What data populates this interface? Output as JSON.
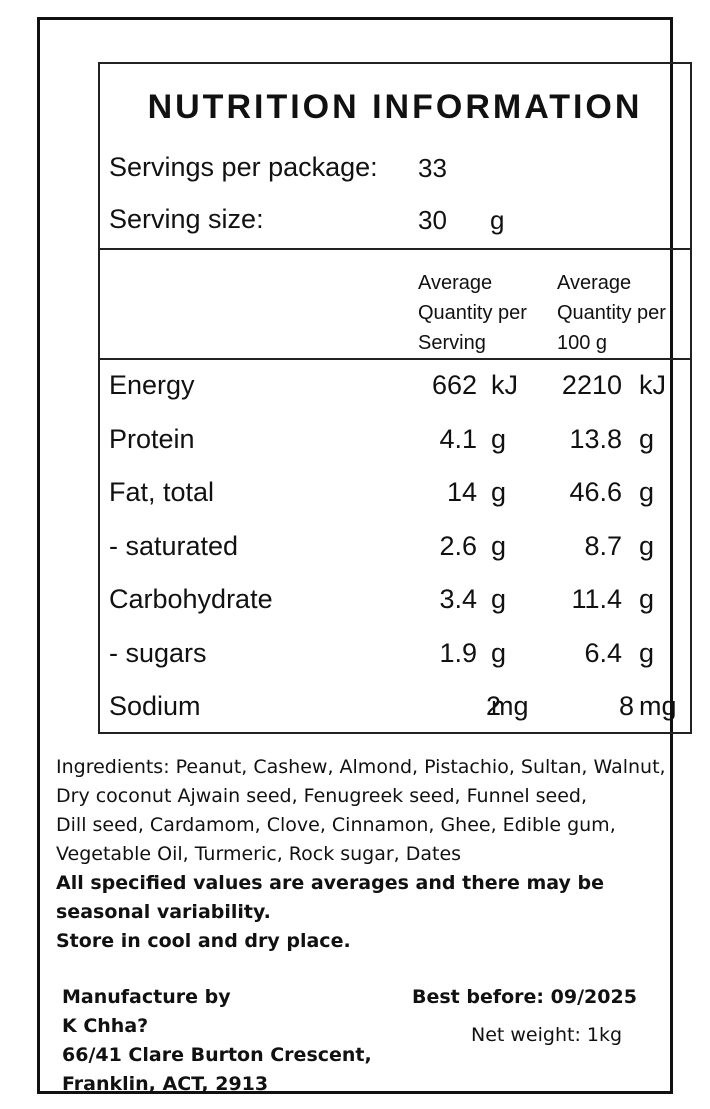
{
  "title": "NUTRITION INFORMATION",
  "servings_per_package": {
    "label": "Servings per package:",
    "value": "33"
  },
  "serving_size": {
    "label": "Serving size:",
    "value": "30",
    "unit": "g"
  },
  "columns": [
    [
      "Average",
      "Quantity per",
      "Serving"
    ],
    [
      "Average",
      "Quantity per",
      "100 g"
    ]
  ],
  "rows": [
    {
      "name": "Energy",
      "per_serving": "662",
      "serving_unit": "kJ",
      "per_100g": "2210",
      "unit_100g": "kJ"
    },
    {
      "name": "Protein",
      "per_serving": "4.1",
      "serving_unit": "g",
      "per_100g": "13.8",
      "unit_100g": "g"
    },
    {
      "name": "Fat, total",
      "per_serving": "14",
      "serving_unit": "g",
      "per_100g": "46.6",
      "unit_100g": "g"
    },
    {
      "name": "- saturated",
      "per_serving": "2.6",
      "serving_unit": "g",
      "per_100g": "8.7",
      "unit_100g": "g"
    },
    {
      "name": "Carbohydrate",
      "per_serving": "3.4",
      "serving_unit": "g",
      "per_100g": "11.4",
      "unit_100g": "g"
    },
    {
      "name": "- sugars",
      "per_serving": "1.9",
      "serving_unit": "g",
      "per_100g": "6.4",
      "unit_100g": "g"
    },
    {
      "name": "Sodium",
      "per_serving": "2",
      "serving_unit": "mg",
      "per_100g": "8",
      "unit_100g": "mg"
    }
  ],
  "ingredients": [
    "Ingredients: Peanut, Cashew, Almond, Pistachio, Sultan, Walnut,",
    "Dry coconut Ajwain seed, Fenugreek seed, Funnel seed,",
    "Dill seed, Cardamom, Clove, Cinnamon, Ghee, Edible gum,",
    "Vegetable Oil, Turmeric, Rock sugar, Dates"
  ],
  "notes": [
    "All specified values are averages and there may be",
    "seasonal variability.",
    "Store in cool and dry place."
  ],
  "manufacturer": [
    "Manufacture by",
    "K Chha?",
    "66/41 Clare Burton Crescent,",
    "Franklin, ACT, 2913"
  ],
  "best_before": "Best before: 09/2025",
  "net_weight": "Net weight: 1kg"
}
